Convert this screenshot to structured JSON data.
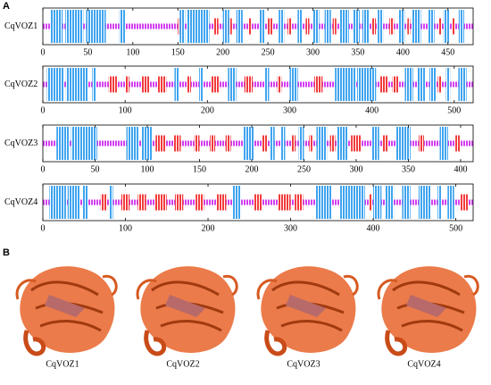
{
  "panel_labels": [
    "A",
    "B"
  ],
  "chart_data": [
    {
      "type": "track",
      "label": "CqVOZ1",
      "xlim": [
        0,
        478
      ],
      "xticks": [
        0,
        50,
        100,
        150,
        200,
        250,
        300,
        350,
        400,
        450
      ],
      "helix_color": "#3fa4ef",
      "strand_color": "#f23b3b",
      "coil_color": "#d23ef0",
      "helices": [
        [
          8,
          22
        ],
        [
          25,
          45
        ],
        [
          48,
          70
        ],
        [
          85,
          92
        ],
        [
          152,
          158
        ],
        [
          160,
          185
        ],
        [
          200,
          207
        ],
        [
          215,
          222
        ],
        [
          240,
          247
        ],
        [
          262,
          268
        ],
        [
          283,
          288
        ],
        [
          300,
          307
        ],
        [
          313,
          320
        ],
        [
          330,
          340
        ],
        [
          345,
          352
        ],
        [
          355,
          362
        ],
        [
          372,
          378
        ],
        [
          395,
          402
        ],
        [
          410,
          420
        ],
        [
          428,
          435
        ],
        [
          445,
          452
        ],
        [
          462,
          468
        ]
      ],
      "strands": [
        [
          150,
          155
        ],
        [
          190,
          195
        ],
        [
          205,
          210
        ],
        [
          228,
          232
        ],
        [
          250,
          255
        ],
        [
          272,
          276
        ],
        [
          292,
          296
        ],
        [
          322,
          326
        ],
        [
          366,
          370
        ],
        [
          385,
          390
        ],
        [
          405,
          408
        ],
        [
          440,
          443
        ],
        [
          455,
          458
        ]
      ]
    },
    {
      "type": "track",
      "label": "CqVOZ2",
      "xlim": [
        0,
        523
      ],
      "xticks": [
        0,
        100,
        200,
        300,
        400,
        500
      ],
      "helix_color": "#3fa4ef",
      "strand_color": "#f23b3b",
      "coil_color": "#d23ef0",
      "helices": [
        [
          5,
          25
        ],
        [
          28,
          55
        ],
        [
          60,
          65
        ],
        [
          160,
          165
        ],
        [
          190,
          195
        ],
        [
          225,
          235
        ],
        [
          270,
          275
        ],
        [
          300,
          310
        ],
        [
          355,
          380
        ],
        [
          382,
          405
        ],
        [
          440,
          450
        ],
        [
          455,
          465
        ],
        [
          470,
          478
        ],
        [
          490,
          495
        ],
        [
          505,
          515
        ]
      ],
      "strands": [
        [
          80,
          90
        ],
        [
          100,
          105
        ],
        [
          120,
          130
        ],
        [
          140,
          150
        ],
        [
          175,
          180
        ],
        [
          205,
          215
        ],
        [
          245,
          255
        ],
        [
          285,
          290
        ],
        [
          330,
          340
        ],
        [
          410,
          420
        ],
        [
          425,
          432
        ],
        [
          480,
          485
        ]
      ]
    },
    {
      "type": "track",
      "label": "CqVOZ3",
      "xlim": [
        0,
        412
      ],
      "xticks": [
        0,
        50,
        100,
        150,
        200,
        250,
        300,
        350,
        400
      ],
      "helix_color": "#3fa4ef",
      "strand_color": "#f23b3b",
      "coil_color": "#d23ef0",
      "helices": [
        [
          13,
          25
        ],
        [
          27,
          52
        ],
        [
          80,
          92
        ],
        [
          94,
          105
        ],
        [
          192,
          202
        ],
        [
          217,
          222
        ],
        [
          228,
          232
        ],
        [
          245,
          250
        ],
        [
          262,
          272
        ],
        [
          282,
          292
        ],
        [
          315,
          322
        ],
        [
          338,
          352
        ],
        [
          380,
          388
        ]
      ],
      "strands": [
        [
          108,
          118
        ],
        [
          125,
          132
        ],
        [
          145,
          150
        ],
        [
          160,
          165
        ],
        [
          175,
          180
        ],
        [
          210,
          215
        ],
        [
          238,
          242
        ],
        [
          255,
          258
        ],
        [
          275,
          280
        ],
        [
          295,
          305
        ],
        [
          325,
          330
        ],
        [
          360,
          365
        ],
        [
          395,
          400
        ]
      ]
    },
    {
      "type": "track",
      "label": "CqVOZ4",
      "xlim": [
        0,
        521
      ],
      "xticks": [
        0,
        100,
        200,
        300,
        400,
        500
      ],
      "helix_color": "#3fa4ef",
      "strand_color": "#f23b3b",
      "coil_color": "#d23ef0",
      "helices": [
        [
          8,
          28
        ],
        [
          30,
          45
        ],
        [
          48,
          55
        ],
        [
          80,
          85
        ],
        [
          230,
          240
        ],
        [
          330,
          350
        ],
        [
          360,
          390
        ],
        [
          400,
          410
        ],
        [
          415,
          425
        ],
        [
          435,
          445
        ],
        [
          455,
          470
        ],
        [
          478,
          483
        ],
        [
          490,
          498
        ]
      ],
      "strands": [
        [
          70,
          78
        ],
        [
          95,
          105
        ],
        [
          115,
          125
        ],
        [
          135,
          150
        ],
        [
          160,
          170
        ],
        [
          185,
          195
        ],
        [
          210,
          222
        ],
        [
          255,
          265
        ],
        [
          285,
          300
        ],
        [
          305,
          315
        ],
        [
          395,
          398
        ],
        [
          505,
          515
        ]
      ]
    }
  ],
  "structures": [
    "CqVOZ1",
    "CqVOZ2",
    "CqVOZ3",
    "CqVOZ4"
  ]
}
